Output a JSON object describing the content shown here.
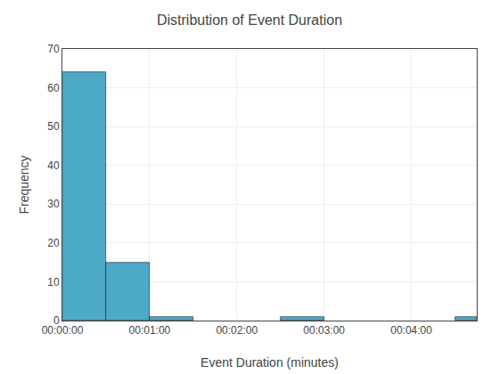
{
  "chart_data": {
    "type": "histogram",
    "title": "Distribution of Event Duration",
    "xlabel": "Event Duration (minutes)",
    "ylabel": "Frequency",
    "bins": [
      0,
      30,
      60,
      90,
      120,
      150,
      180,
      210,
      240,
      270,
      285
    ],
    "values": [
      64,
      15,
      1,
      0,
      0,
      1,
      0,
      0,
      0,
      1
    ],
    "color": "#4da9c8",
    "xlim": [
      0,
      285
    ],
    "xticks": [
      {
        "value": 0,
        "label": "00:00:00"
      },
      {
        "value": 60,
        "label": "00:01:00"
      },
      {
        "value": 120,
        "label": "00:02:00"
      },
      {
        "value": 180,
        "label": "00:03:00"
      },
      {
        "value": 240,
        "label": "00:04:00"
      }
    ],
    "ylim": [
      0,
      70
    ],
    "yticks": [
      0,
      10,
      20,
      30,
      40,
      50,
      60,
      70
    ],
    "grid": true
  }
}
